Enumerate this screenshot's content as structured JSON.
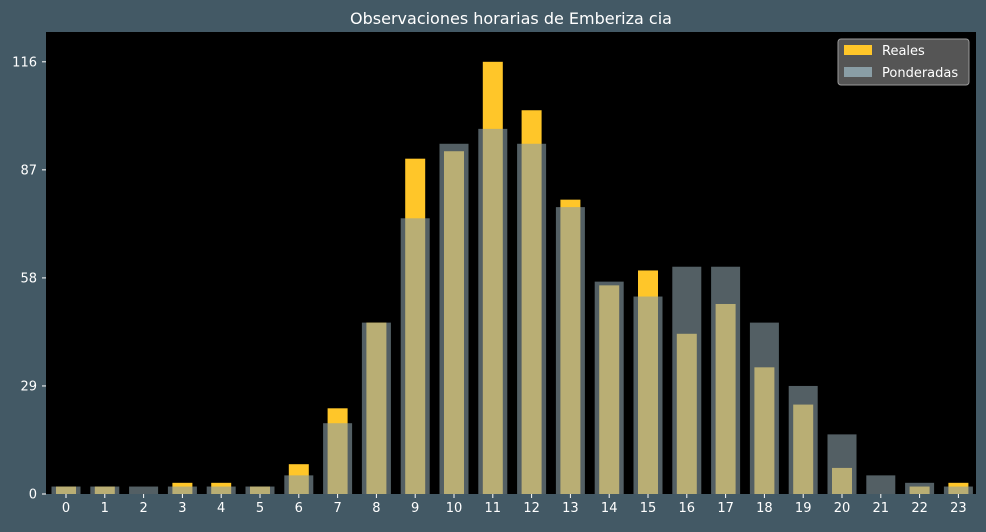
{
  "colors": {
    "background": "#435965",
    "plot_background": "#000000",
    "text": "#ffffff",
    "real_bar": "#ffc629",
    "weighted_bar": "#8a9ea6",
    "weighted_opacity": 0.6,
    "legend_background": "#555555",
    "legend_border": "#9a9a9a"
  },
  "chart_data": {
    "type": "bar",
    "title": "Observaciones horarias de Emberiza cia",
    "xlabel": "",
    "ylabel": "",
    "categories": [
      "0",
      "1",
      "2",
      "3",
      "4",
      "5",
      "6",
      "7",
      "8",
      "9",
      "10",
      "11",
      "12",
      "13",
      "14",
      "15",
      "16",
      "17",
      "18",
      "19",
      "20",
      "21",
      "22",
      "23"
    ],
    "series": [
      {
        "name": "Reales",
        "values": [
          2,
          2,
          0,
          3,
          3,
          2,
          8,
          23,
          46,
          90,
          92,
          116,
          103,
          79,
          56,
          60,
          43,
          51,
          34,
          24,
          7,
          0,
          2,
          3
        ]
      },
      {
        "name": "Ponderadas",
        "values": [
          2,
          2,
          2,
          2,
          2,
          2,
          5,
          19,
          46,
          74,
          94,
          98,
          94,
          77,
          57,
          53,
          61,
          61,
          46,
          29,
          16,
          5,
          3,
          2
        ]
      }
    ],
    "yticks": [
      "0",
      "29",
      "58",
      "87",
      "116"
    ],
    "ylim": [
      0,
      124
    ],
    "grid": false,
    "legend": "top-right"
  }
}
